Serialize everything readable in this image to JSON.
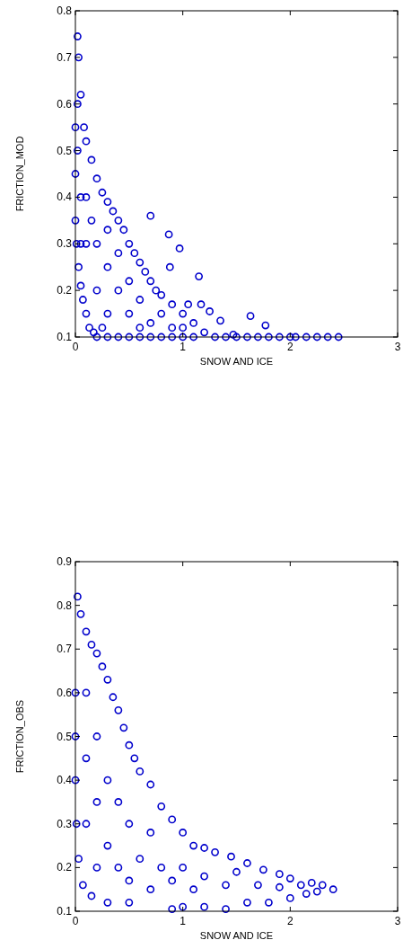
{
  "chart_data": [
    {
      "type": "scatter",
      "xlabel": "SNOW AND ICE",
      "ylabel": "FRICTION_MOD",
      "color": "#0000cc",
      "marker": "circle",
      "grid": false,
      "xlim": [
        0,
        3
      ],
      "xticks": [
        0,
        1,
        2,
        3
      ],
      "ylim": [
        0.1,
        0.8
      ],
      "yticks": [
        0.1,
        0.2,
        0.3,
        0.4,
        0.5,
        0.6,
        0.7,
        0.8
      ],
      "x": [
        0.02,
        0.03,
        0.05,
        0.08,
        0.1,
        0.15,
        0.2,
        0.25,
        0.3,
        0.35,
        0.4,
        0.45,
        0.5,
        0.55,
        0.6,
        0.65,
        0.7,
        0.75,
        0.8,
        0.9,
        1.0,
        1.1,
        1.2,
        0,
        0,
        0,
        0.01,
        0.03,
        0.05,
        0.07,
        0.1,
        0.13,
        0.17,
        0.2,
        0.3,
        0.4,
        0.5,
        0.6,
        0.7,
        0.8,
        0.9,
        1.0,
        1.1,
        1.3,
        1.4,
        1.5,
        1.6,
        1.7,
        1.8,
        1.9,
        2.0,
        2.05,
        2.15,
        2.25,
        2.35,
        2.45,
        0.7,
        0.87,
        0.97,
        1.15,
        0.88,
        1.17,
        1.25,
        1.35,
        1.47,
        1.63,
        1.77,
        0.1,
        0.1,
        0.2,
        0.2,
        0.3,
        0.3,
        0.3,
        0.4,
        0.4,
        0.5,
        0.5,
        0.6,
        0.7,
        0.8,
        0.9,
        1.0,
        0.05,
        0.05,
        0.02,
        0.02,
        0.15,
        0.25,
        0.6,
        1.05
      ],
      "values": [
        0.745,
        0.7,
        0.62,
        0.55,
        0.52,
        0.48,
        0.44,
        0.41,
        0.39,
        0.37,
        0.35,
        0.33,
        0.3,
        0.28,
        0.26,
        0.24,
        0.22,
        0.2,
        0.19,
        0.17,
        0.15,
        0.13,
        0.11,
        0.35,
        0.45,
        0.55,
        0.3,
        0.25,
        0.21,
        0.18,
        0.15,
        0.12,
        0.11,
        0.1,
        0.1,
        0.1,
        0.1,
        0.1,
        0.1,
        0.1,
        0.1,
        0.1,
        0.1,
        0.1,
        0.1,
        0.1,
        0.1,
        0.1,
        0.1,
        0.1,
        0.1,
        0.1,
        0.1,
        0.1,
        0.1,
        0.1,
        0.36,
        0.32,
        0.29,
        0.23,
        0.25,
        0.17,
        0.155,
        0.135,
        0.105,
        0.145,
        0.125,
        0.3,
        0.4,
        0.2,
        0.3,
        0.15,
        0.25,
        0.33,
        0.2,
        0.28,
        0.15,
        0.22,
        0.18,
        0.13,
        0.15,
        0.12,
        0.12,
        0.4,
        0.3,
        0.5,
        0.6,
        0.35,
        0.12,
        0.12,
        0.17
      ]
    },
    {
      "type": "scatter",
      "xlabel": "SNOW AND ICE",
      "ylabel": "FRICTION_OBS",
      "color": "#0000cc",
      "marker": "circle",
      "grid": false,
      "xlim": [
        0,
        3
      ],
      "xticks": [
        0,
        1,
        2,
        3
      ],
      "ylim": [
        0.1,
        0.9
      ],
      "yticks": [
        0.1,
        0.2,
        0.3,
        0.4,
        0.5,
        0.6,
        0.7,
        0.8,
        0.9
      ],
      "x": [
        0.02,
        0.05,
        0.1,
        0.15,
        0.2,
        0.25,
        0.3,
        0.35,
        0.4,
        0.45,
        0.5,
        0.55,
        0.6,
        0.7,
        0.8,
        0.9,
        1.0,
        1.1,
        1.2,
        1.3,
        1.45,
        1.6,
        1.75,
        1.9,
        2.0,
        2.1,
        2.2,
        2.3,
        2.4,
        0,
        0,
        0,
        0.01,
        0.03,
        0.07,
        0.15,
        0.3,
        0.5,
        0.9,
        1.0,
        1.2,
        1.4,
        1.6,
        1.8,
        2.0,
        2.15,
        2.25,
        0.1,
        0.1,
        0.1,
        0.2,
        0.2,
        0.2,
        0.3,
        0.3,
        0.4,
        0.4,
        0.5,
        0.5,
        0.6,
        0.7,
        0.7,
        0.8,
        0.9,
        1.0,
        1.1,
        1.2,
        1.4,
        1.5,
        1.7,
        1.9
      ],
      "values": [
        0.82,
        0.78,
        0.74,
        0.71,
        0.69,
        0.66,
        0.63,
        0.59,
        0.56,
        0.52,
        0.48,
        0.45,
        0.42,
        0.39,
        0.34,
        0.31,
        0.28,
        0.25,
        0.245,
        0.235,
        0.225,
        0.21,
        0.195,
        0.185,
        0.175,
        0.16,
        0.165,
        0.16,
        0.15,
        0.4,
        0.5,
        0.6,
        0.3,
        0.22,
        0.16,
        0.135,
        0.12,
        0.12,
        0.105,
        0.11,
        0.11,
        0.105,
        0.12,
        0.12,
        0.13,
        0.14,
        0.145,
        0.3,
        0.45,
        0.6,
        0.2,
        0.35,
        0.5,
        0.25,
        0.4,
        0.2,
        0.35,
        0.17,
        0.3,
        0.22,
        0.15,
        0.28,
        0.2,
        0.17,
        0.2,
        0.15,
        0.18,
        0.16,
        0.19,
        0.16,
        0.155
      ]
    }
  ]
}
